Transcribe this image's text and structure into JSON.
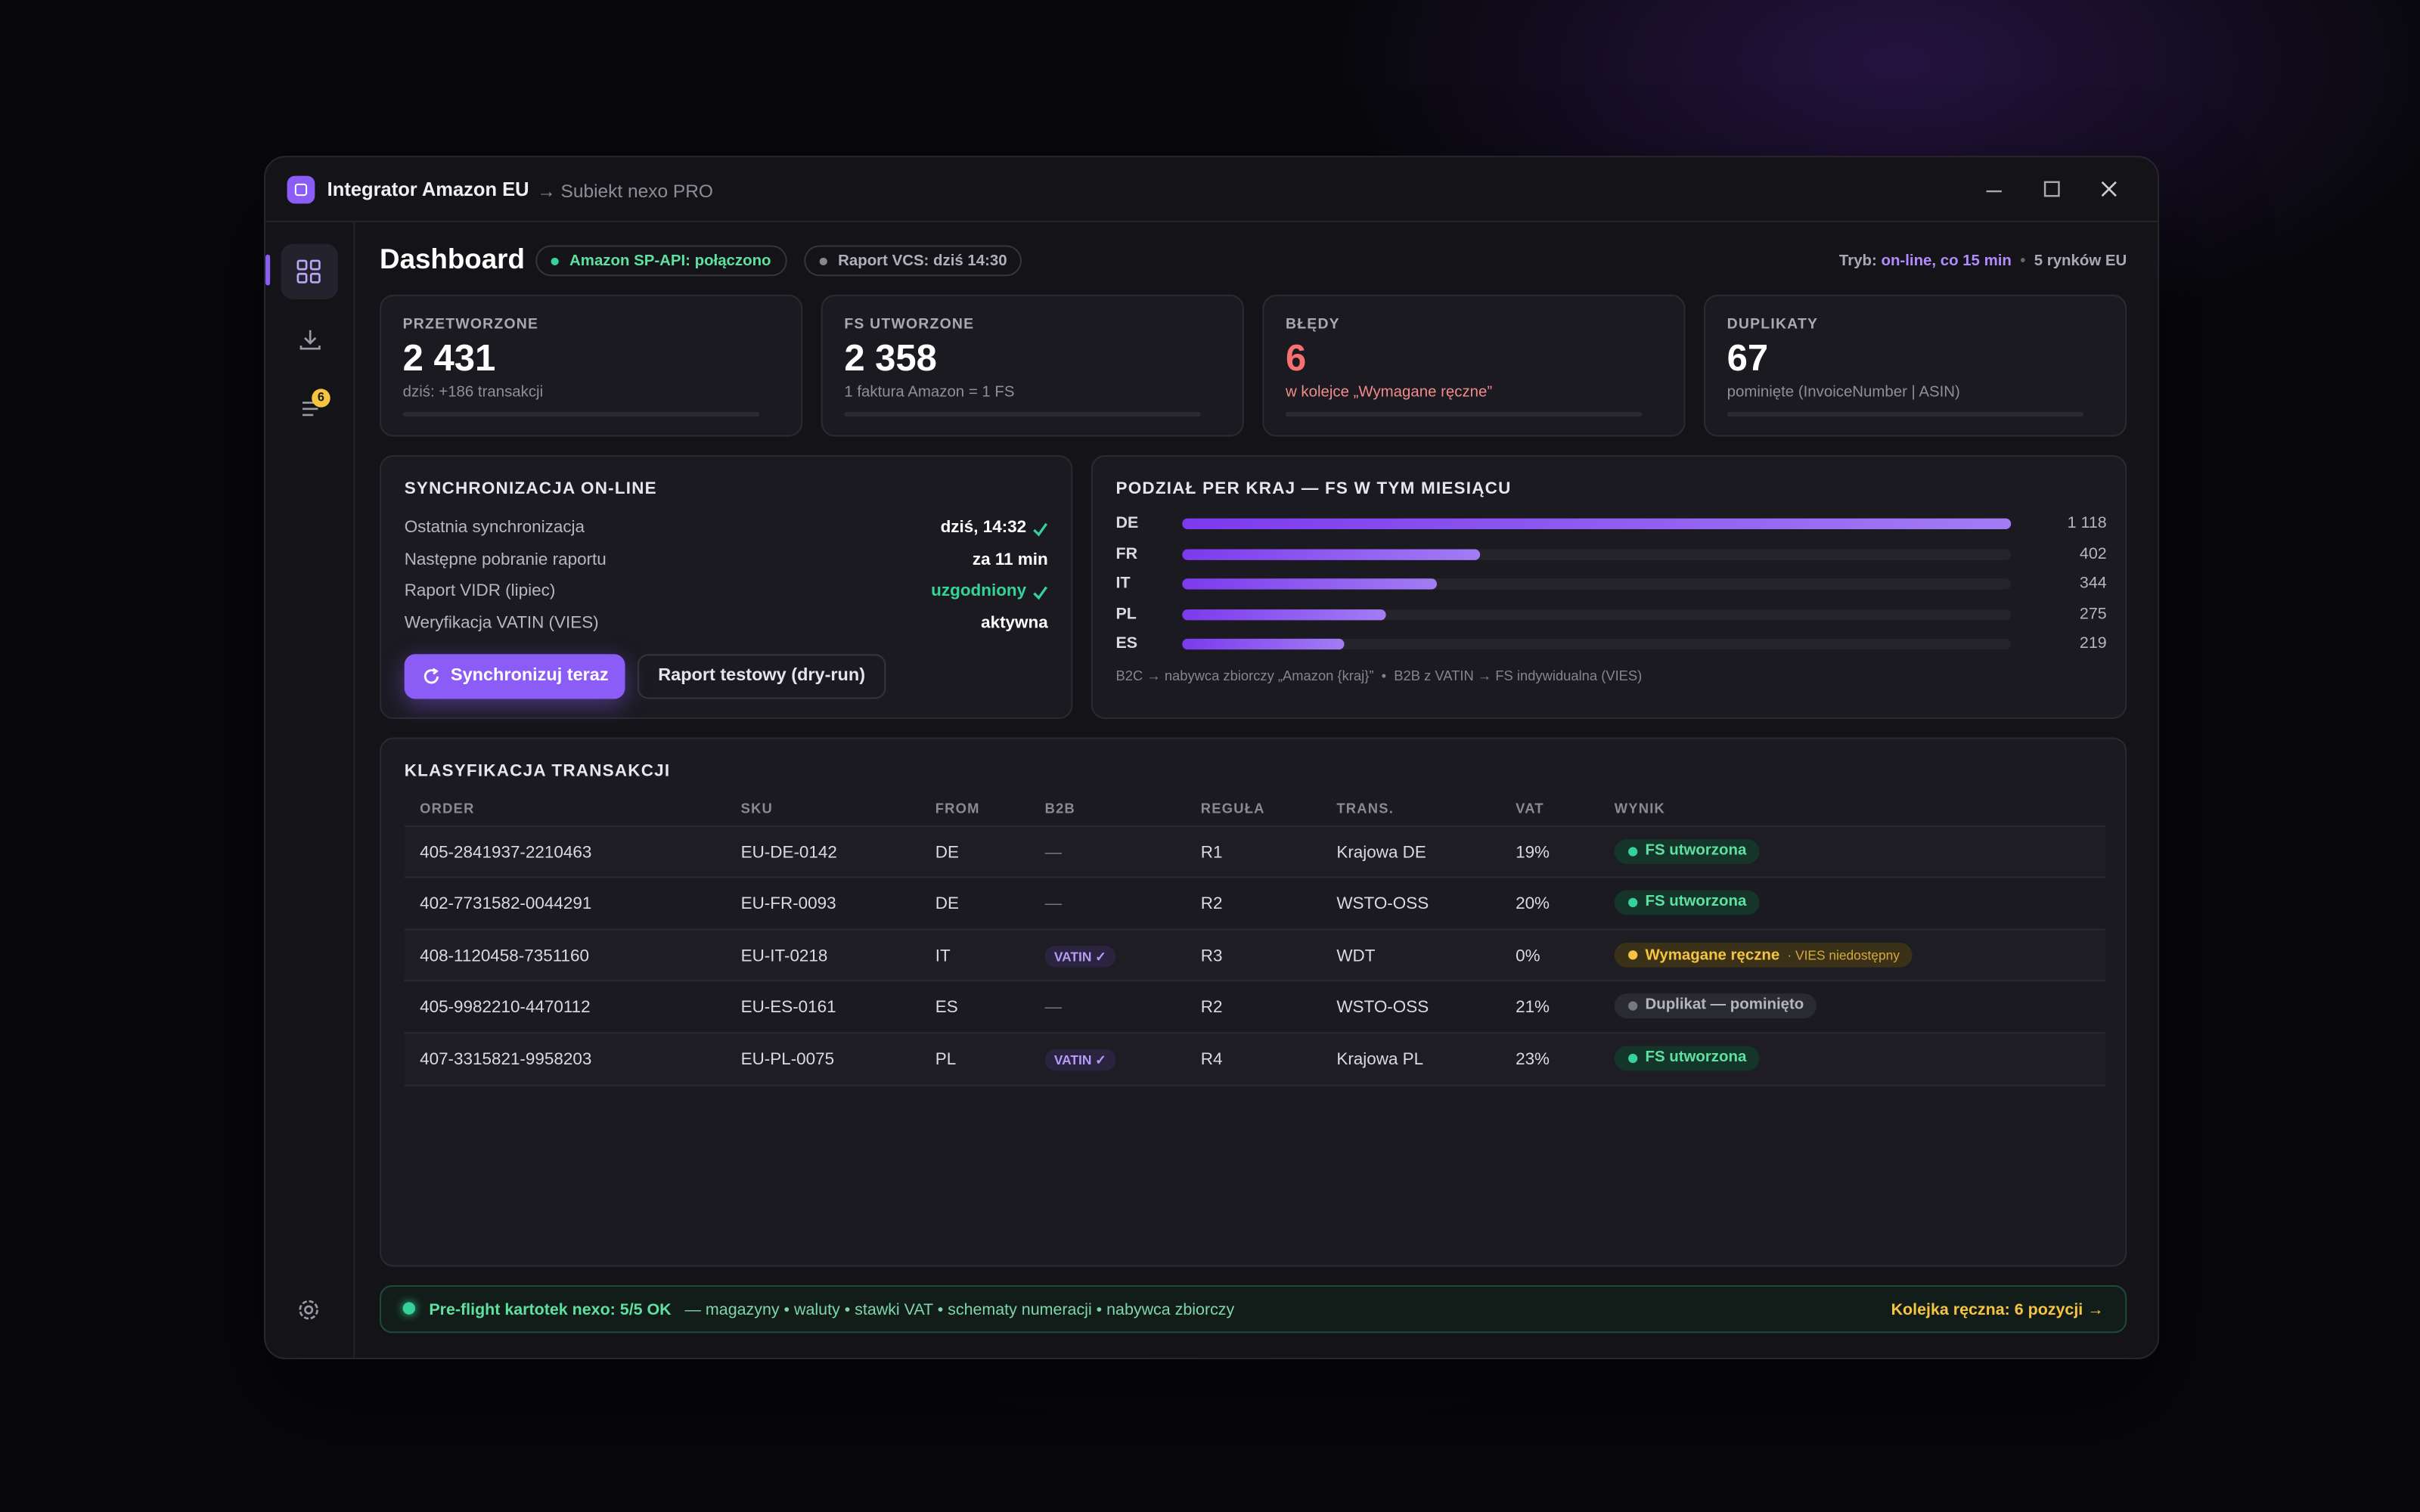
{
  "window": {
    "title": "Integrator Amazon EU",
    "subtitle": "→ Subiekt nexo PRO"
  },
  "sidebar": {
    "badge": "6"
  },
  "header": {
    "title": "Dashboard",
    "status_api": "Amazon SP-API: połączono",
    "status_vcs": "Raport VCS: dziś 14:30",
    "mode_label": "Tryb:",
    "mode_value": "on-line, co 15 min",
    "markets": "5 rynków EU"
  },
  "kpis": [
    {
      "label": "PRZETWORZONE",
      "value": "2 431",
      "note": "dziś: +186 transakcji"
    },
    {
      "label": "FS UTWORZONE",
      "value": "2 358",
      "note": "1 faktura Amazon = 1 FS"
    },
    {
      "label": "BŁĘDY",
      "value": "6",
      "note": "w kolejce „Wymagane ręczne”"
    },
    {
      "label": "DUPLIKATY",
      "value": "67",
      "note": "pominięte (InvoiceNumber | ASIN)"
    }
  ],
  "sync": {
    "title": "SYNCHRONIZACJA ON-LINE",
    "rows": [
      {
        "label": "Ostatnia synchronizacja",
        "value": "dziś, 14:32"
      },
      {
        "label": "Następne pobranie raportu",
        "value": "za 11 min"
      },
      {
        "label": "Raport VIDR (lipiec)",
        "value": "uzgodniony"
      },
      {
        "label": "Weryfikacja VATIN (VIES)",
        "value": "aktywna"
      }
    ],
    "primary_button": "Synchronizuj teraz",
    "secondary_button": "Raport testowy (dry-run)"
  },
  "country_split": {
    "title": "PODZIAŁ PER KRAJ — FS W TYM MIESIĄCU",
    "categories": [
      "DE",
      "FR",
      "IT",
      "PL",
      "ES"
    ],
    "values": [
      1118,
      402,
      344,
      275,
      219
    ],
    "value_labels": [
      "1 118",
      "402",
      "344",
      "275",
      "219"
    ],
    "note": "B2C → nabywca zbiorczy „Amazon {kraj}”  •  B2B z VATIN → FS indywidualna (VIES)"
  },
  "table": {
    "title": "KLASYFIKACJA TRANSAKCJI",
    "columns": [
      "ORDER",
      "SKU",
      "FROM",
      "B2B",
      "REGUŁA",
      "TRANS.",
      "VAT",
      "WYNIK"
    ],
    "rows": [
      {
        "order": "405-2841937-2210463",
        "sku": "EU-DE-0142",
        "from": "DE",
        "b2b": "—",
        "rule": "R1",
        "trans": "Krajowa DE",
        "vat": "19%",
        "result": "FS utworzona",
        "status": "success"
      },
      {
        "order": "402-7731582-0044291",
        "sku": "EU-FR-0093",
        "from": "DE",
        "b2b": "—",
        "rule": "R2",
        "trans": "WSTO-OSS",
        "vat": "20%",
        "result": "FS utworzona",
        "status": "success"
      },
      {
        "order": "408-1120458-7351160",
        "sku": "EU-IT-0218",
        "from": "IT",
        "b2b": "VATIN ✓",
        "rule": "R3",
        "trans": "WDT",
        "vat": "0%",
        "result": "Wymagane ręczne",
        "result_note": "· VIES niedostępny",
        "status": "warning"
      },
      {
        "order": "405-9982210-4470112",
        "sku": "EU-ES-0161",
        "from": "ES",
        "b2b": "—",
        "rule": "R2",
        "trans": "WSTO-OSS",
        "vat": "21%",
        "result": "Duplikat — pominięto",
        "status": "muted"
      },
      {
        "order": "407-3315821-9958203",
        "sku": "EU-PL-0075",
        "from": "PL",
        "b2b": "VATIN ✓",
        "rule": "R4",
        "trans": "Krajowa PL",
        "vat": "23%",
        "result": "FS utworzona",
        "status": "success"
      }
    ]
  },
  "footer": {
    "status": "Pre-flight kartotek nexo: 5/5 OK",
    "details": "— magazyny • waluty • stawki VAT • schematy numeracji • nabywca zbiorczy",
    "queue": "Kolejka ręczna: 6 pozycji →"
  }
}
